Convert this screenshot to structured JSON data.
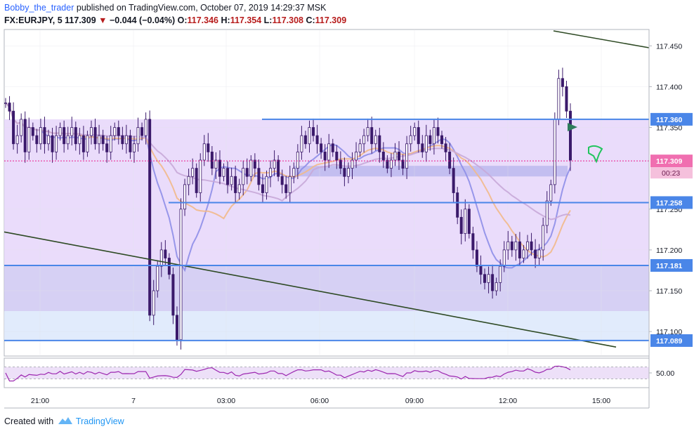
{
  "header": {
    "author": "Bobby_the_trader",
    "publish_text": "published on TradingView.com, October 07, 2019 14:29:37 MSK",
    "symbol": "FX:EURJPY, 5",
    "last": "117.309",
    "change": "−0.044 (−0.04%)",
    "o_label": "O:",
    "o_value": "117.346",
    "h_label": "H:",
    "h_value": "117.354",
    "l_label": "L:",
    "l_value": "117.308",
    "c_label": "C:",
    "c_value": "117.309"
  },
  "footer": {
    "created_with": "Created with",
    "brand": "TradingView"
  },
  "colors": {
    "candle": "#3b1a6b",
    "band_upper": "#e6d6fa",
    "band_lower": "#cfc8f2",
    "band_bottom": "#dce8fb",
    "level_line": "#4a86e8",
    "trend_line": "#2e4a24",
    "rsi": "#9c27b0",
    "ma_fast": "#8e8ee8",
    "ma_mid": "#f2b98a",
    "ma_slow": "#c8a8d8",
    "last_price": "#e91e8c"
  },
  "chart_data": {
    "type": "candlestick",
    "x_ticks": [
      "21:00",
      "7",
      "03:00",
      "06:00",
      "09:00",
      "12:00",
      "15:00"
    ],
    "y_ticks": [
      "117.450",
      "117.400",
      "117.350",
      "117.250",
      "117.200",
      "117.150",
      "117.100"
    ],
    "ylim": [
      117.07,
      117.47
    ],
    "levels": [
      {
        "label": "117.360",
        "value": 117.36
      },
      {
        "label": "117.258",
        "value": 117.258
      },
      {
        "label": "117.181",
        "value": 117.181
      },
      {
        "label": "117.089",
        "value": 117.089
      }
    ],
    "last_price": {
      "label": "117.309",
      "value": 117.309,
      "countdown": "00:23"
    },
    "zones": [
      {
        "name": "upper",
        "from": 117.181,
        "to": 117.36
      },
      {
        "name": "lower",
        "from": 117.125,
        "to": 117.181
      },
      {
        "name": "bottom",
        "from": 117.089,
        "to": 117.125
      }
    ],
    "closes": [
      117.38,
      117.37,
      117.33,
      117.34,
      117.36,
      117.32,
      117.35,
      117.34,
      117.33,
      117.35,
      117.33,
      117.34,
      117.32,
      117.34,
      117.35,
      117.33,
      117.34,
      117.35,
      117.33,
      117.34,
      117.32,
      117.34,
      117.35,
      117.33,
      117.34,
      117.33,
      117.32,
      117.34,
      117.35,
      117.34,
      117.33,
      117.34,
      117.32,
      117.33,
      117.35,
      117.34,
      117.36,
      117.12,
      117.15,
      117.18,
      117.2,
      117.19,
      117.17,
      117.12,
      117.09,
      117.25,
      117.28,
      117.29,
      117.3,
      117.27,
      117.31,
      117.33,
      117.32,
      117.3,
      117.31,
      117.29,
      117.3,
      117.28,
      117.29,
      117.27,
      117.28,
      117.3,
      117.29,
      117.31,
      117.3,
      117.28,
      117.27,
      117.29,
      117.3,
      117.31,
      117.29,
      117.28,
      117.27,
      117.29,
      117.3,
      117.32,
      117.34,
      117.33,
      117.35,
      117.34,
      117.33,
      117.32,
      117.31,
      117.33,
      117.32,
      117.31,
      117.3,
      117.29,
      117.3,
      117.31,
      117.32,
      117.33,
      117.34,
      117.35,
      117.33,
      117.34,
      117.32,
      117.31,
      117.3,
      117.31,
      117.32,
      117.31,
      117.3,
      117.33,
      117.34,
      117.35,
      117.33,
      117.32,
      117.34,
      117.33,
      117.35,
      117.34,
      117.33,
      117.32,
      117.3,
      117.27,
      117.24,
      117.22,
      117.25,
      117.22,
      117.2,
      117.18,
      117.17,
      117.16,
      117.17,
      117.15,
      117.16,
      117.18,
      117.2,
      117.21,
      117.2,
      117.21,
      117.19,
      117.2,
      117.21,
      117.2,
      117.19,
      117.2,
      117.23,
      117.26,
      117.28,
      117.36,
      117.41,
      117.4,
      117.37,
      117.31
    ],
    "rsi": {
      "label": "50.00",
      "upper": 70,
      "mid": 50,
      "lower": 30
    },
    "trend_lines": [
      {
        "name": "upper-trend",
        "from": [
          "left",
          117.22
        ],
        "to": [
          "right",
          117.08
        ]
      },
      {
        "name": "top-trend",
        "from": [
          "right-top",
          117.46
        ],
        "to": [
          "axis",
          117.44
        ]
      }
    ],
    "grid": true
  }
}
